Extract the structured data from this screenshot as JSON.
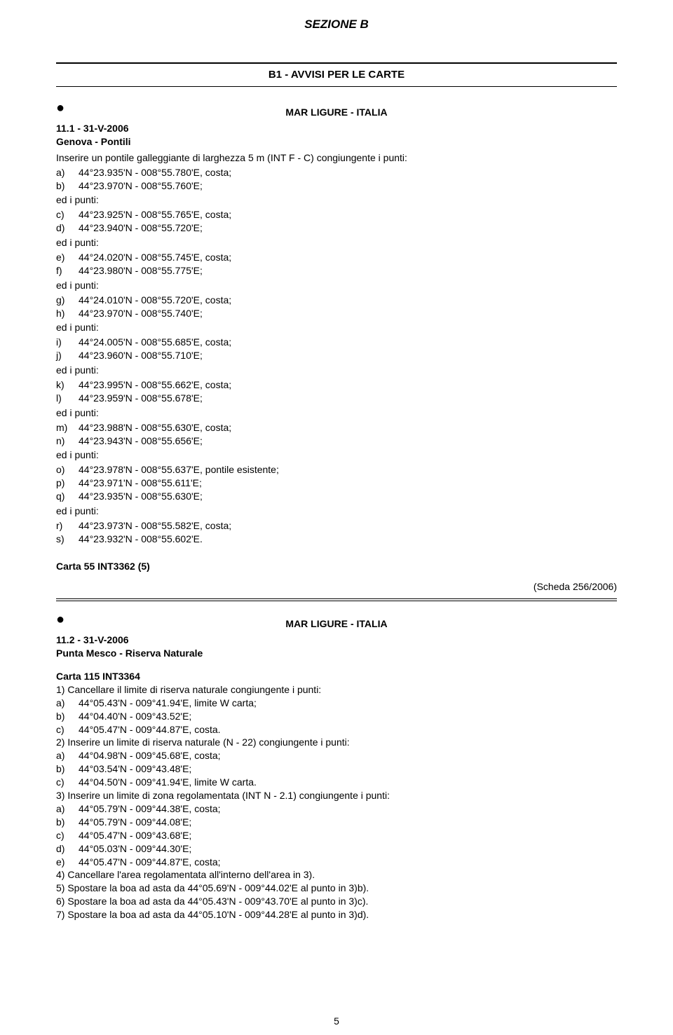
{
  "section_header": "SEZIONE B",
  "title": "B1 - AVVISI PER LE CARTE",
  "region": "MAR LIGURE - ITALIA",
  "bullet": "●",
  "pagenum": "5",
  "notice1": {
    "id": "11.1 - 31-V-2006",
    "title": "Genova - Pontili",
    "intro": "Inserire un pontile galleggiante di larghezza 5 m (INT F - C) congiungente i punti:",
    "groups": [
      [
        {
          "l": "a)",
          "v": "44°23.935'N - 008°55.780'E, costa;"
        },
        {
          "l": "b)",
          "v": "44°23.970'N - 008°55.760'E;"
        }
      ],
      [
        {
          "l": "c)",
          "v": "44°23.925'N - 008°55.765'E, costa;"
        },
        {
          "l": "d)",
          "v": "44°23.940'N - 008°55.720'E;"
        }
      ],
      [
        {
          "l": "e)",
          "v": "44°24.020'N - 008°55.745'E, costa;"
        },
        {
          "l": "f)",
          "v": "44°23.980'N - 008°55.775'E;"
        }
      ],
      [
        {
          "l": "g)",
          "v": "44°24.010'N - 008°55.720'E, costa;"
        },
        {
          "l": "h)",
          "v": "44°23.970'N - 008°55.740'E;"
        }
      ],
      [
        {
          "l": "i)",
          "v": "44°24.005'N - 008°55.685'E, costa;"
        },
        {
          "l": "j)",
          "v": "44°23.960'N - 008°55.710'E;"
        }
      ],
      [
        {
          "l": "k)",
          "v": "44°23.995'N - 008°55.662'E, costa;"
        },
        {
          "l": "l)",
          "v": "44°23.959'N - 008°55.678'E;"
        }
      ],
      [
        {
          "l": "m)",
          "v": "44°23.988'N - 008°55.630'E, costa;"
        },
        {
          "l": "n)",
          "v": "44°23.943'N - 008°55.656'E;"
        }
      ],
      [
        {
          "l": "o)",
          "v": "44°23.978'N - 008°55.637'E, pontile esistente;"
        },
        {
          "l": "p)",
          "v": "44°23.971'N - 008°55.611'E;"
        },
        {
          "l": "q)",
          "v": "44°23.935'N - 008°55.630'E;"
        }
      ],
      [
        {
          "l": "r)",
          "v": "44°23.973'N - 008°55.582'E, costa;"
        },
        {
          "l": "s)",
          "v": "44°23.932'N - 008°55.602'E."
        }
      ]
    ],
    "sep": "ed i punti:",
    "chart": "Carta 55 INT3362 (5)",
    "scheda": "(Scheda 256/2006)"
  },
  "notice2": {
    "id": "11.2 - 31-V-2006",
    "title": "Punta Mesco - Riserva Naturale",
    "chart": "Carta 115 INT3364",
    "lines": [
      "1) Cancellare il limite di riserva naturale congiungente i punti:",
      {
        "l": "a)",
        "v": "44°05.43'N - 009°41.94'E, limite W carta;"
      },
      {
        "l": "b)",
        "v": "44°04.40'N - 009°43.52'E;"
      },
      {
        "l": "c)",
        "v": "44°05.47'N - 009°44.87'E, costa."
      },
      "2) Inserire un limite di riserva naturale (N - 22) congiungente i punti:",
      {
        "l": "a)",
        "v": "44°04.98'N - 009°45.68'E, costa;"
      },
      {
        "l": "b)",
        "v": "44°03.54'N - 009°43.48'E;"
      },
      {
        "l": "c)",
        "v": "44°04.50'N - 009°41.94'E, limite W carta."
      },
      "3) Inserire un limite di zona regolamentata (INT N - 2.1) congiungente i punti:",
      {
        "l": "a)",
        "v": "44°05.79'N - 009°44.38'E, costa;"
      },
      {
        "l": "b)",
        "v": "44°05.79'N - 009°44.08'E;"
      },
      {
        "l": "c)",
        "v": "44°05.47'N - 009°43.68'E;"
      },
      {
        "l": "d)",
        "v": "44°05.03'N - 009°44.30'E;"
      },
      {
        "l": "e)",
        "v": "44°05.47'N - 009°44.87'E, costa;"
      },
      "4) Cancellare l'area regolamentata all'interno dell'area in 3).",
      "5) Spostare la boa ad asta da 44°05.69'N - 009°44.02'E al punto in 3)b).",
      "6) Spostare la boa ad asta da 44°05.43'N - 009°43.70'E al punto in 3)c).",
      "7) Spostare la boa ad asta da 44°05.10'N - 009°44.28'E al punto in 3)d)."
    ]
  }
}
